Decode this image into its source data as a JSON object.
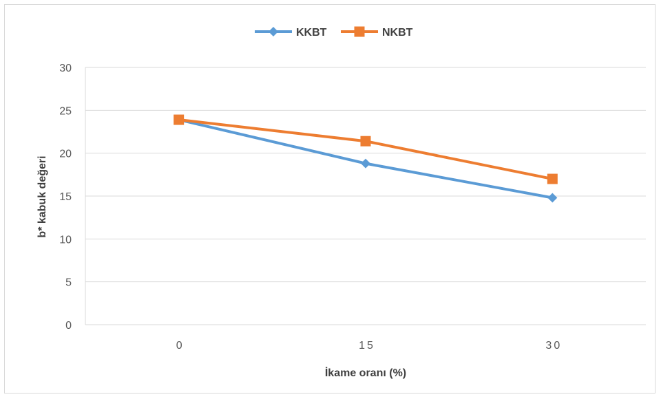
{
  "chart_data": {
    "type": "line",
    "title": "",
    "xlabel": "İkame oranı (%)",
    "ylabel": "b* kabuk değeri",
    "categories": [
      "0",
      "15",
      "30"
    ],
    "ylim": [
      0,
      30
    ],
    "yticks": [
      "0",
      "5",
      "10",
      "15",
      "20",
      "25",
      "30"
    ],
    "grid": true,
    "legend_position": "top-center",
    "series": [
      {
        "name": "KKBT",
        "values": [
          23.9,
          18.8,
          14.8
        ],
        "color": "#5b9bd5",
        "marker": "diamond"
      },
      {
        "name": "NKBT",
        "values": [
          23.9,
          21.4,
          17.0
        ],
        "color": "#ed7d31",
        "marker": "square"
      }
    ]
  }
}
